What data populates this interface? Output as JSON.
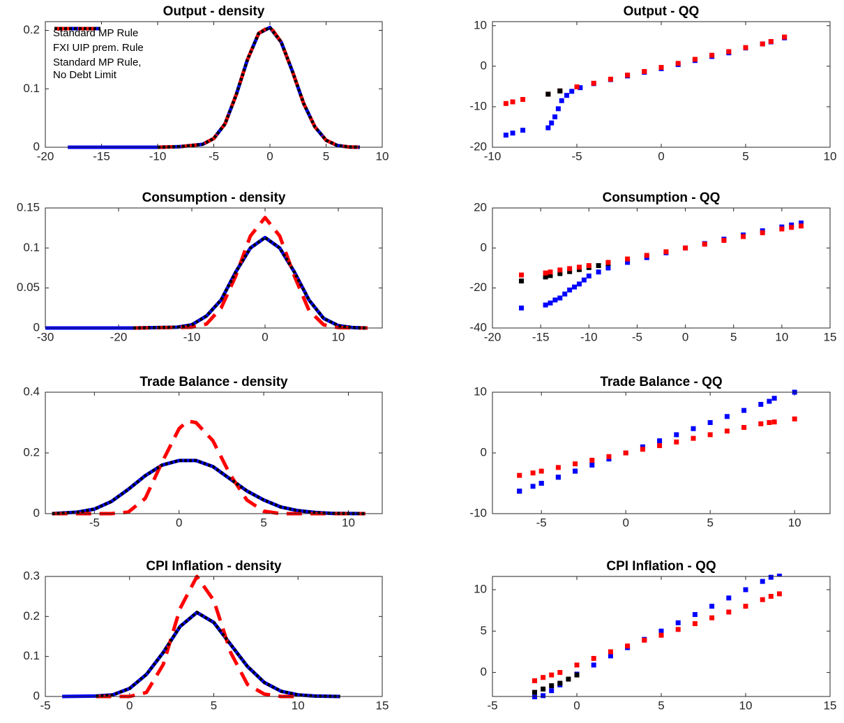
{
  "chart_data": [
    {
      "type": "line",
      "title": "Output - density",
      "legend": "upper left",
      "xlim": [
        -20,
        10
      ],
      "ylim": [
        0,
        0.215
      ],
      "xticks": [
        -20,
        -15,
        -10,
        -5,
        0,
        5,
        10
      ],
      "yticks": [
        0,
        0.1,
        0.2
      ],
      "series": [
        {
          "name": "Standard MP Rule",
          "color": "#0000ff",
          "dash": "solid",
          "x": [
            -18,
            -10,
            -8,
            -6,
            -5,
            -4,
            -3,
            -2,
            -1,
            0,
            1,
            2,
            3,
            4,
            5,
            6,
            7,
            8
          ],
          "values": [
            0,
            0,
            0.001,
            0.005,
            0.015,
            0.04,
            0.09,
            0.15,
            0.195,
            0.205,
            0.18,
            0.13,
            0.075,
            0.035,
            0.012,
            0.003,
            0.0005,
            0
          ]
        },
        {
          "name": "FXI UIP prem. Rule",
          "color": "#ff0000",
          "dash": "dashed",
          "x": [
            -10,
            -8,
            -6,
            -5,
            -4,
            -3,
            -2,
            -1,
            0,
            1,
            2,
            3,
            4,
            5,
            6,
            7,
            8
          ],
          "values": [
            0,
            0.001,
            0.005,
            0.015,
            0.04,
            0.09,
            0.15,
            0.195,
            0.207,
            0.18,
            0.13,
            0.075,
            0.035,
            0.012,
            0.003,
            0.0005,
            0
          ]
        },
        {
          "name": "Standard MP Rule,\nNo Debt Limit",
          "color": "#000000",
          "dash": "dotted",
          "x": [
            -10,
            -8,
            -6,
            -5,
            -4,
            -3,
            -2,
            -1,
            0,
            1,
            2,
            3,
            4,
            5,
            6,
            7,
            8
          ],
          "values": [
            0,
            0.001,
            0.005,
            0.015,
            0.04,
            0.09,
            0.15,
            0.195,
            0.205,
            0.18,
            0.13,
            0.075,
            0.035,
            0.012,
            0.003,
            0.0005,
            0
          ]
        }
      ]
    },
    {
      "type": "scatter",
      "title": "Output - QQ",
      "xlim": [
        -10,
        10
      ],
      "ylim": [
        -20,
        11
      ],
      "xticks": [
        -10,
        -5,
        0,
        5,
        10
      ],
      "yticks": [
        -20,
        -10,
        0,
        10
      ],
      "series": [
        {
          "color": "#0000ff",
          "x": [
            -9.2,
            -8.8,
            -8.2,
            -6.7,
            -6.5,
            -6.3,
            -6.1,
            -5.9,
            -5.6,
            -5.3,
            -4.8,
            -4,
            -3,
            -2,
            -1,
            0,
            1,
            2,
            3,
            4,
            5,
            6,
            6.5,
            7.3
          ],
          "values": [
            -17,
            -16.5,
            -15.8,
            -15.2,
            -14,
            -12.5,
            -10.5,
            -8.5,
            -7.2,
            -6.2,
            -5.3,
            -4.3,
            -3.3,
            -2.4,
            -1.5,
            -0.6,
            0.4,
            1.4,
            2.4,
            3.3,
            4.5,
            5.5,
            6,
            7
          ]
        },
        {
          "color": "#ff0000",
          "x": [
            -9.2,
            -8.8,
            -8.2,
            -6.7,
            -6,
            -5,
            -4,
            -3,
            -2,
            -1,
            0,
            1,
            2,
            3,
            4,
            5,
            6,
            6.5,
            7.3
          ],
          "values": [
            -9.2,
            -8.8,
            -8.2,
            -6.9,
            -6.1,
            -5.1,
            -4.2,
            -3.2,
            -2.2,
            -1.3,
            -0.3,
            0.7,
            1.7,
            2.7,
            3.6,
            4.6,
            5.5,
            6.1,
            7.2
          ]
        },
        {
          "color": "#000000",
          "x": [
            -6.7,
            -6
          ],
          "values": [
            -6.9,
            -6.1
          ]
        }
      ]
    },
    {
      "type": "line",
      "title": "Consumption - density",
      "xlim": [
        -30,
        16
      ],
      "ylim": [
        0,
        0.15
      ],
      "xticks": [
        -30,
        -20,
        -10,
        0,
        10
      ],
      "yticks": [
        0,
        0.05,
        0.1,
        0.15
      ],
      "series": [
        {
          "color": "#0000ff",
          "dash": "solid",
          "x": [
            -30,
            -18,
            -12,
            -10,
            -8,
            -6,
            -4,
            -2,
            0,
            2,
            4,
            6,
            8,
            10,
            12,
            14
          ],
          "values": [
            0,
            0,
            0.001,
            0.004,
            0.015,
            0.035,
            0.07,
            0.1,
            0.113,
            0.1,
            0.07,
            0.035,
            0.012,
            0.003,
            0.0005,
            0
          ]
        },
        {
          "color": "#ff0000",
          "dash": "dashed",
          "x": [
            -18,
            -10,
            -8,
            -6,
            -4,
            -2,
            0,
            2,
            4,
            6,
            8,
            10,
            14
          ],
          "values": [
            0,
            0.001,
            0.005,
            0.025,
            0.065,
            0.115,
            0.138,
            0.115,
            0.065,
            0.022,
            0.004,
            0.0005,
            0
          ]
        },
        {
          "color": "#000000",
          "dash": "dotted",
          "x": [
            -18,
            -12,
            -10,
            -8,
            -6,
            -4,
            -2,
            0,
            2,
            4,
            6,
            8,
            10,
            12,
            14
          ],
          "values": [
            0,
            0.001,
            0.004,
            0.015,
            0.035,
            0.07,
            0.1,
            0.113,
            0.1,
            0.07,
            0.035,
            0.012,
            0.003,
            0.0005,
            0
          ]
        }
      ]
    },
    {
      "type": "scatter",
      "title": "Consumption - QQ",
      "xlim": [
        -20,
        15
      ],
      "ylim": [
        -40,
        20
      ],
      "xticks": [
        -20,
        -15,
        -10,
        -5,
        0,
        5,
        10,
        15
      ],
      "yticks": [
        -40,
        -20,
        0,
        20
      ],
      "series": [
        {
          "color": "#0000ff",
          "x": [
            -17,
            -14.5,
            -14,
            -13.5,
            -13,
            -12.5,
            -12,
            -11.5,
            -11,
            -10.5,
            -10,
            -9,
            -8,
            -6,
            -4,
            -2,
            0,
            2,
            4,
            6,
            8,
            10,
            11,
            12
          ],
          "values": [
            -30,
            -28.5,
            -27.5,
            -26,
            -25,
            -23,
            -21,
            -19.5,
            -18,
            -16,
            -14,
            -12,
            -10,
            -7.2,
            -4.8,
            -2.4,
            0,
            2.2,
            4.4,
            6.5,
            8.6,
            10.5,
            11.5,
            12.5
          ]
        },
        {
          "color": "#000000",
          "x": [
            -17,
            -14.5,
            -14,
            -13,
            -12,
            -11,
            -10,
            -9,
            -8
          ],
          "values": [
            -16.5,
            -14.5,
            -13.8,
            -12.8,
            -11.8,
            -10.8,
            -9.8,
            -8.8,
            -7.8
          ]
        },
        {
          "color": "#ff0000",
          "x": [
            -17,
            -14.5,
            -14,
            -13,
            -12,
            -11,
            -10,
            -8,
            -6,
            -4,
            -2,
            0,
            2,
            4,
            6,
            8,
            10,
            11,
            12
          ],
          "values": [
            -13.5,
            -12.5,
            -12,
            -11,
            -10.3,
            -9.6,
            -8.8,
            -7.2,
            -5.5,
            -3.7,
            -1.9,
            0,
            1.9,
            3.8,
            5.7,
            7.6,
            9.5,
            10.3,
            11
          ]
        }
      ]
    },
    {
      "type": "line",
      "title": "Trade Balance - density",
      "xlim": [
        -7.9,
        12
      ],
      "ylim": [
        0,
        0.4
      ],
      "xticks": [
        -5,
        0,
        5,
        10
      ],
      "yticks": [
        0,
        0.2,
        0.4
      ],
      "series": [
        {
          "color": "#0000ff",
          "dash": "solid",
          "x": [
            -7.5,
            -6,
            -5,
            -4,
            -3,
            -2,
            -1,
            0,
            1,
            2,
            3,
            4,
            5,
            6,
            7,
            8,
            9,
            11
          ],
          "values": [
            0,
            0.005,
            0.015,
            0.04,
            0.08,
            0.125,
            0.16,
            0.175,
            0.175,
            0.155,
            0.115,
            0.075,
            0.045,
            0.022,
            0.01,
            0.004,
            0.001,
            0
          ]
        },
        {
          "color": "#ff0000",
          "dash": "dashed",
          "x": [
            -7.5,
            -4,
            -3,
            -2,
            -1,
            0,
            0.5,
            1,
            2,
            3,
            4,
            5,
            6,
            11
          ],
          "values": [
            0,
            0,
            0.005,
            0.05,
            0.17,
            0.28,
            0.305,
            0.3,
            0.24,
            0.13,
            0.045,
            0.008,
            0,
            0
          ]
        },
        {
          "color": "#000000",
          "dash": "dotted",
          "x": [
            -7.5,
            -6,
            -5,
            -4,
            -3,
            -2,
            -1,
            0,
            1,
            2,
            3,
            4,
            5,
            6,
            7,
            8,
            9,
            11
          ],
          "values": [
            0,
            0.005,
            0.015,
            0.04,
            0.08,
            0.125,
            0.16,
            0.175,
            0.175,
            0.155,
            0.115,
            0.075,
            0.045,
            0.022,
            0.01,
            0.004,
            0.001,
            0
          ]
        }
      ]
    },
    {
      "type": "scatter",
      "title": "Trade Balance - QQ",
      "xlim": [
        -7.9,
        12.1
      ],
      "ylim": [
        -10,
        10
      ],
      "xticks": [
        -5,
        0,
        5,
        10
      ],
      "yticks": [
        -10,
        0,
        10
      ],
      "series": [
        {
          "color": "#000000",
          "x": [
            -6.3,
            -5,
            -4,
            -3
          ],
          "values": [
            -6.3,
            -5,
            -4,
            -3
          ]
        },
        {
          "color": "#0000ff",
          "x": [
            -6.3,
            -5.5,
            -5,
            -4,
            -3,
            -2,
            -1,
            0,
            1,
            2,
            3,
            4,
            5,
            6,
            7,
            8,
            8.5,
            8.8,
            10
          ],
          "values": [
            -6.3,
            -5.5,
            -5,
            -4,
            -3,
            -2,
            -1,
            0,
            1,
            2,
            3,
            4,
            5,
            6,
            7,
            8,
            8.5,
            9,
            10
          ]
        },
        {
          "color": "#ff0000",
          "x": [
            -6.3,
            -5.5,
            -5,
            -4,
            -3,
            -2,
            -1,
            0,
            1,
            2,
            3,
            4,
            5,
            6,
            7,
            8,
            8.5,
            8.8,
            10
          ],
          "values": [
            -3.7,
            -3.3,
            -3,
            -2.4,
            -1.8,
            -1.2,
            -0.6,
            0,
            0.6,
            1.2,
            1.8,
            2.4,
            3,
            3.6,
            4.2,
            4.8,
            5,
            5.1,
            5.6
          ]
        }
      ]
    },
    {
      "type": "line",
      "title": "CPI Inflation - density",
      "xlim": [
        -5,
        15
      ],
      "ylim": [
        0,
        0.3
      ],
      "xticks": [
        -5,
        0,
        5,
        10,
        15
      ],
      "yticks": [
        0,
        0.1,
        0.2,
        0.3
      ],
      "series": [
        {
          "color": "#0000ff",
          "dash": "solid",
          "x": [
            -4,
            -2,
            -1,
            0,
            1,
            2,
            3,
            4,
            5,
            6,
            7,
            8,
            9,
            10,
            11,
            12.5
          ],
          "values": [
            0,
            0.001,
            0.004,
            0.02,
            0.055,
            0.11,
            0.175,
            0.21,
            0.185,
            0.13,
            0.075,
            0.035,
            0.013,
            0.004,
            0.001,
            0
          ]
        },
        {
          "color": "#ff0000",
          "dash": "dashed",
          "x": [
            -2,
            0,
            1,
            2,
            3,
            4,
            5,
            6,
            7,
            8,
            9,
            10
          ],
          "values": [
            0,
            0,
            0.01,
            0.08,
            0.22,
            0.3,
            0.24,
            0.11,
            0.03,
            0.006,
            0,
            0
          ]
        },
        {
          "color": "#000000",
          "dash": "dotted",
          "x": [
            -2,
            -1,
            0,
            1,
            2,
            3,
            4,
            5,
            6,
            7,
            8,
            9,
            10,
            11,
            12.5
          ],
          "values": [
            0.001,
            0.004,
            0.02,
            0.055,
            0.11,
            0.175,
            0.21,
            0.185,
            0.13,
            0.075,
            0.035,
            0.013,
            0.004,
            0.001,
            0
          ]
        }
      ]
    },
    {
      "type": "scatter",
      "title": "CPI Inflation - QQ",
      "xlim": [
        -5,
        15
      ],
      "ylim": [
        -2.9,
        11.6
      ],
      "xticks": [
        -5,
        0,
        5,
        10,
        15
      ],
      "yticks": [
        0,
        5,
        10
      ],
      "series": [
        {
          "color": "#0000ff",
          "x": [
            -2.5,
            -2,
            -1.5,
            -1,
            0,
            1,
            2,
            3,
            4,
            5,
            6,
            7,
            8,
            9,
            10,
            11,
            11.5,
            12
          ],
          "values": [
            -3,
            -2.8,
            -2.2,
            -1.5,
            -0.2,
            0.9,
            2,
            3,
            4,
            5,
            6,
            7,
            8,
            9,
            10,
            11,
            11.5,
            11.9
          ]
        },
        {
          "color": "#000000",
          "x": [
            -2.5,
            -2,
            -1.5,
            -1,
            -0.5,
            0
          ],
          "values": [
            -2.4,
            -2,
            -1.6,
            -1.3,
            -0.8,
            -0.3
          ]
        },
        {
          "color": "#ff0000",
          "x": [
            -2.5,
            -2,
            -1.5,
            -1,
            0,
            1,
            2,
            3,
            4,
            5,
            6,
            7,
            8,
            9,
            10,
            11,
            11.5,
            12
          ],
          "values": [
            -1,
            -0.6,
            -0.3,
            0,
            0.9,
            1.7,
            2.5,
            3.2,
            3.9,
            4.5,
            5.2,
            5.9,
            6.6,
            7.3,
            8,
            8.8,
            9.2,
            9.5
          ]
        }
      ]
    }
  ]
}
